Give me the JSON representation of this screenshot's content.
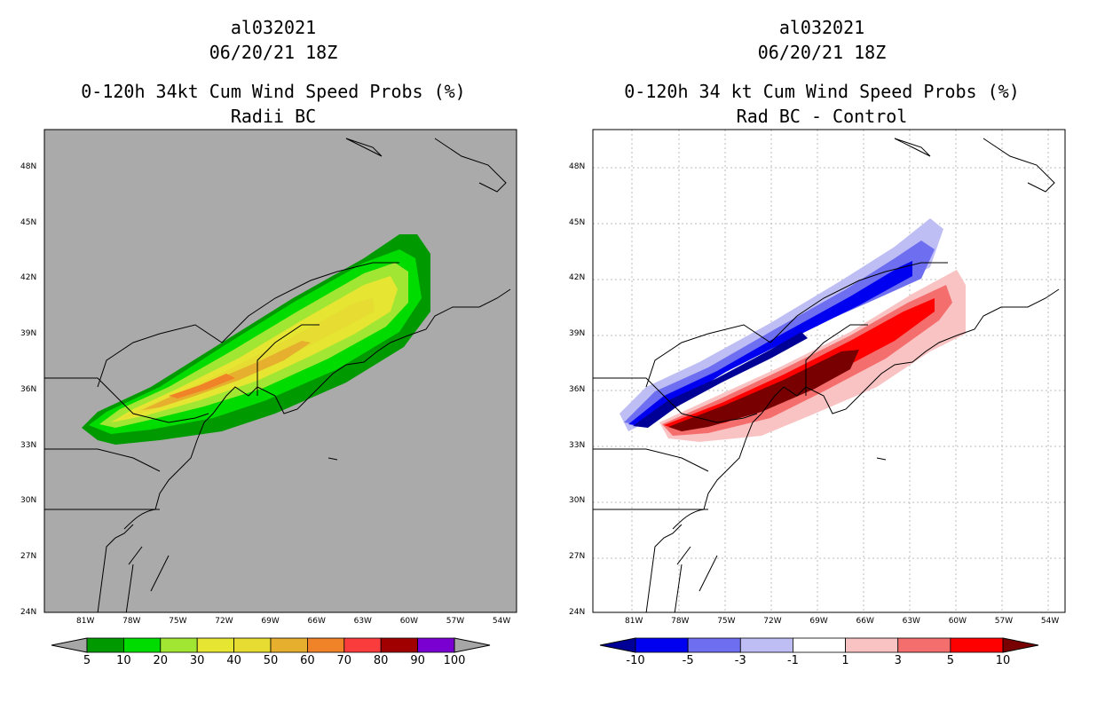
{
  "left_panel": {
    "storm_id": "al032021",
    "datetime": "06/20/21 18Z",
    "title": "0-120h 34kt Cum Wind Speed Probs (%)",
    "subtitle": "Radii BC",
    "background": "#aaaaaa",
    "colorbar": {
      "labels": [
        "5",
        "10",
        "20",
        "30",
        "40",
        "50",
        "60",
        "70",
        "80",
        "90",
        "100"
      ],
      "colors": [
        "#009a00",
        "#00dc00",
        "#a0e632",
        "#e6e632",
        "#e6dc32",
        "#e6af2d",
        "#f08228",
        "#fa3c3c",
        "#a00000",
        "#7a00d2"
      ],
      "under_color": "#a6a6a6",
      "over_color": "#a6a6a6"
    }
  },
  "right_panel": {
    "storm_id": "al032021",
    "datetime": "06/20/21 18Z",
    "title": "0-120h 34 kt Cum Wind Speed Probs (%)",
    "subtitle": "Rad BC - Control",
    "background": "#ffffff",
    "colorbar": {
      "labels": [
        "-10",
        "-5",
        "-3",
        "-1",
        "1",
        "3",
        "5",
        "10"
      ],
      "colors": [
        "#0000f0",
        "#6e6ef0",
        "#bebef5",
        "#ffffff",
        "#fac3c3",
        "#f56e6e",
        "#ff0000"
      ],
      "under_color": "#000096",
      "over_color": "#780000"
    }
  },
  "axes": {
    "lon_labels": [
      "81W",
      "78W",
      "75W",
      "72W",
      "69W",
      "66W",
      "63W",
      "60W",
      "57W",
      "54W"
    ],
    "lat_labels": [
      "48N",
      "45N",
      "42N",
      "39N",
      "36N",
      "33N",
      "30N",
      "27N",
      "24N"
    ]
  }
}
